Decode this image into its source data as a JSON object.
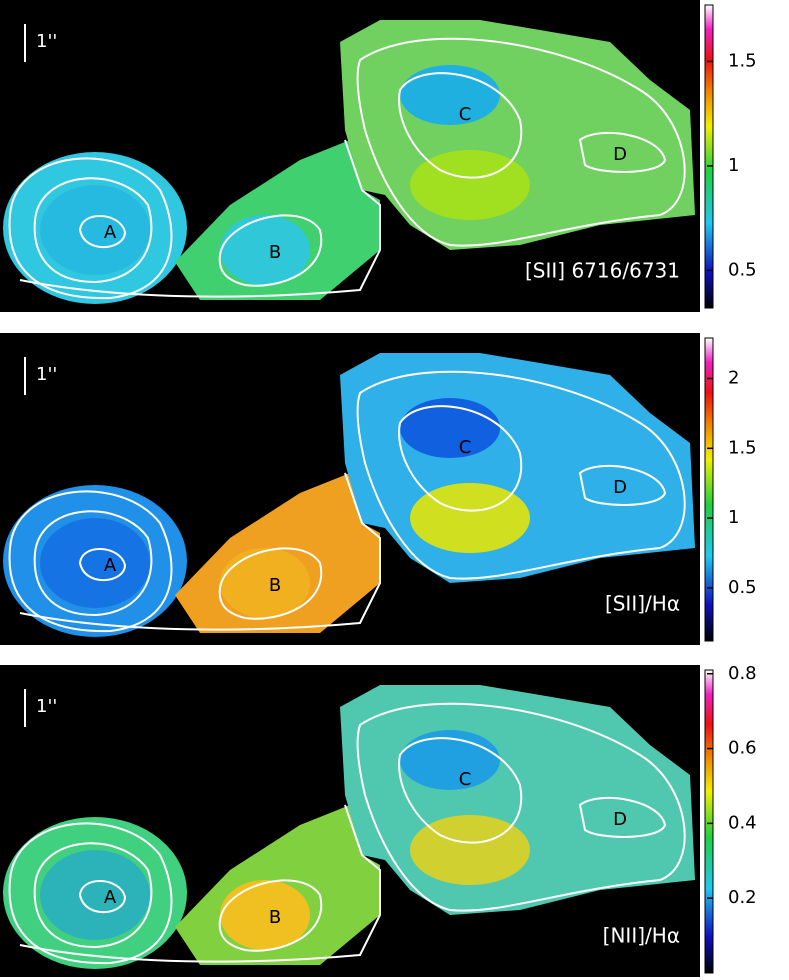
{
  "panels": [
    {
      "title": "[SII] 6716/6731",
      "scale_bar": "1''",
      "regions": [
        "A",
        "B",
        "C",
        "D"
      ],
      "colorbar": {
        "ylim": [
          0.32,
          1.77
        ],
        "yticks": [
          0.5,
          1,
          1.5
        ]
      }
    },
    {
      "title": "[SII]/Hα",
      "scale_bar": "1''",
      "regions": [
        "A",
        "B",
        "C",
        "D"
      ],
      "colorbar": {
        "ylim": [
          0.12,
          2.29
        ],
        "yticks": [
          0.5,
          1,
          1.5,
          2
        ]
      }
    },
    {
      "title": "[NII]/Hα",
      "scale_bar": "1''",
      "regions": [
        "A",
        "B",
        "C",
        "D"
      ],
      "colorbar": {
        "ylim": [
          0,
          0.81
        ],
        "yticks": [
          0.2,
          0.4,
          0.6,
          0.8
        ]
      }
    }
  ]
}
